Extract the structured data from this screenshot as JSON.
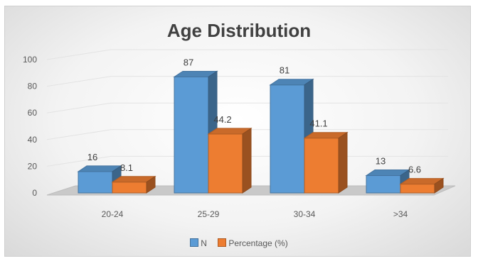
{
  "chart_data": {
    "type": "bar",
    "title": "Age Distribution",
    "categories": [
      "20-24",
      "25-29",
      "30-34",
      ">34"
    ],
    "series": [
      {
        "name": "N",
        "values": [
          16,
          87,
          81,
          13
        ],
        "labels": [
          "16",
          "87",
          "81",
          "13"
        ],
        "color": "#5b9bd5"
      },
      {
        "name": "Percentage (%)",
        "values": [
          8.1,
          44.2,
          41.1,
          6.6
        ],
        "labels": [
          "8.1",
          "44.2",
          "41.1",
          "6.6"
        ],
        "color": "#ed7d31"
      }
    ],
    "y_ticks": [
      "0",
      "20",
      "40",
      "60",
      "80",
      "100"
    ],
    "ylim": [
      0,
      100
    ],
    "grid": true,
    "legend_position": "bottom"
  }
}
